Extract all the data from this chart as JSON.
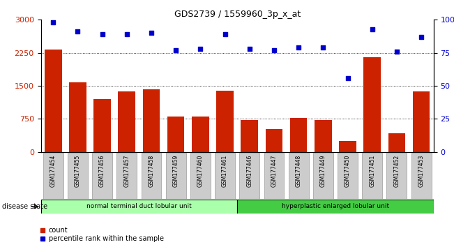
{
  "title": "GDS2739 / 1559960_3p_x_at",
  "categories": [
    "GSM177454",
    "GSM177455",
    "GSM177456",
    "GSM177457",
    "GSM177458",
    "GSM177459",
    "GSM177460",
    "GSM177461",
    "GSM177446",
    "GSM177447",
    "GSM177448",
    "GSM177449",
    "GSM177450",
    "GSM177451",
    "GSM177452",
    "GSM177453"
  ],
  "bar_values": [
    2320,
    1580,
    1200,
    1380,
    1420,
    800,
    810,
    1390,
    730,
    520,
    770,
    730,
    250,
    2150,
    430,
    1380
  ],
  "scatter_values": [
    98,
    91,
    89,
    89,
    90,
    77,
    78,
    89,
    78,
    77,
    79,
    79,
    56,
    93,
    76,
    87
  ],
  "group1_label": "normal terminal duct lobular unit",
  "group2_label": "hyperplastic enlarged lobular unit",
  "group1_count": 8,
  "group2_count": 8,
  "bar_color": "#cc2200",
  "scatter_color": "#0000cc",
  "ylim_left": [
    0,
    3000
  ],
  "ylim_right": [
    0,
    100
  ],
  "yticks_left": [
    0,
    750,
    1500,
    2250,
    3000
  ],
  "yticks_right": [
    0,
    25,
    50,
    75,
    100
  ],
  "legend_count_label": "count",
  "legend_pct_label": "percentile rank within the sample",
  "disease_state_label": "disease state",
  "group1_color": "#aaffaa",
  "group2_color": "#44cc44",
  "background_color": "#ffffff",
  "xticklabel_bg": "#cccccc",
  "hgrid_values": [
    750,
    1500,
    2250
  ]
}
